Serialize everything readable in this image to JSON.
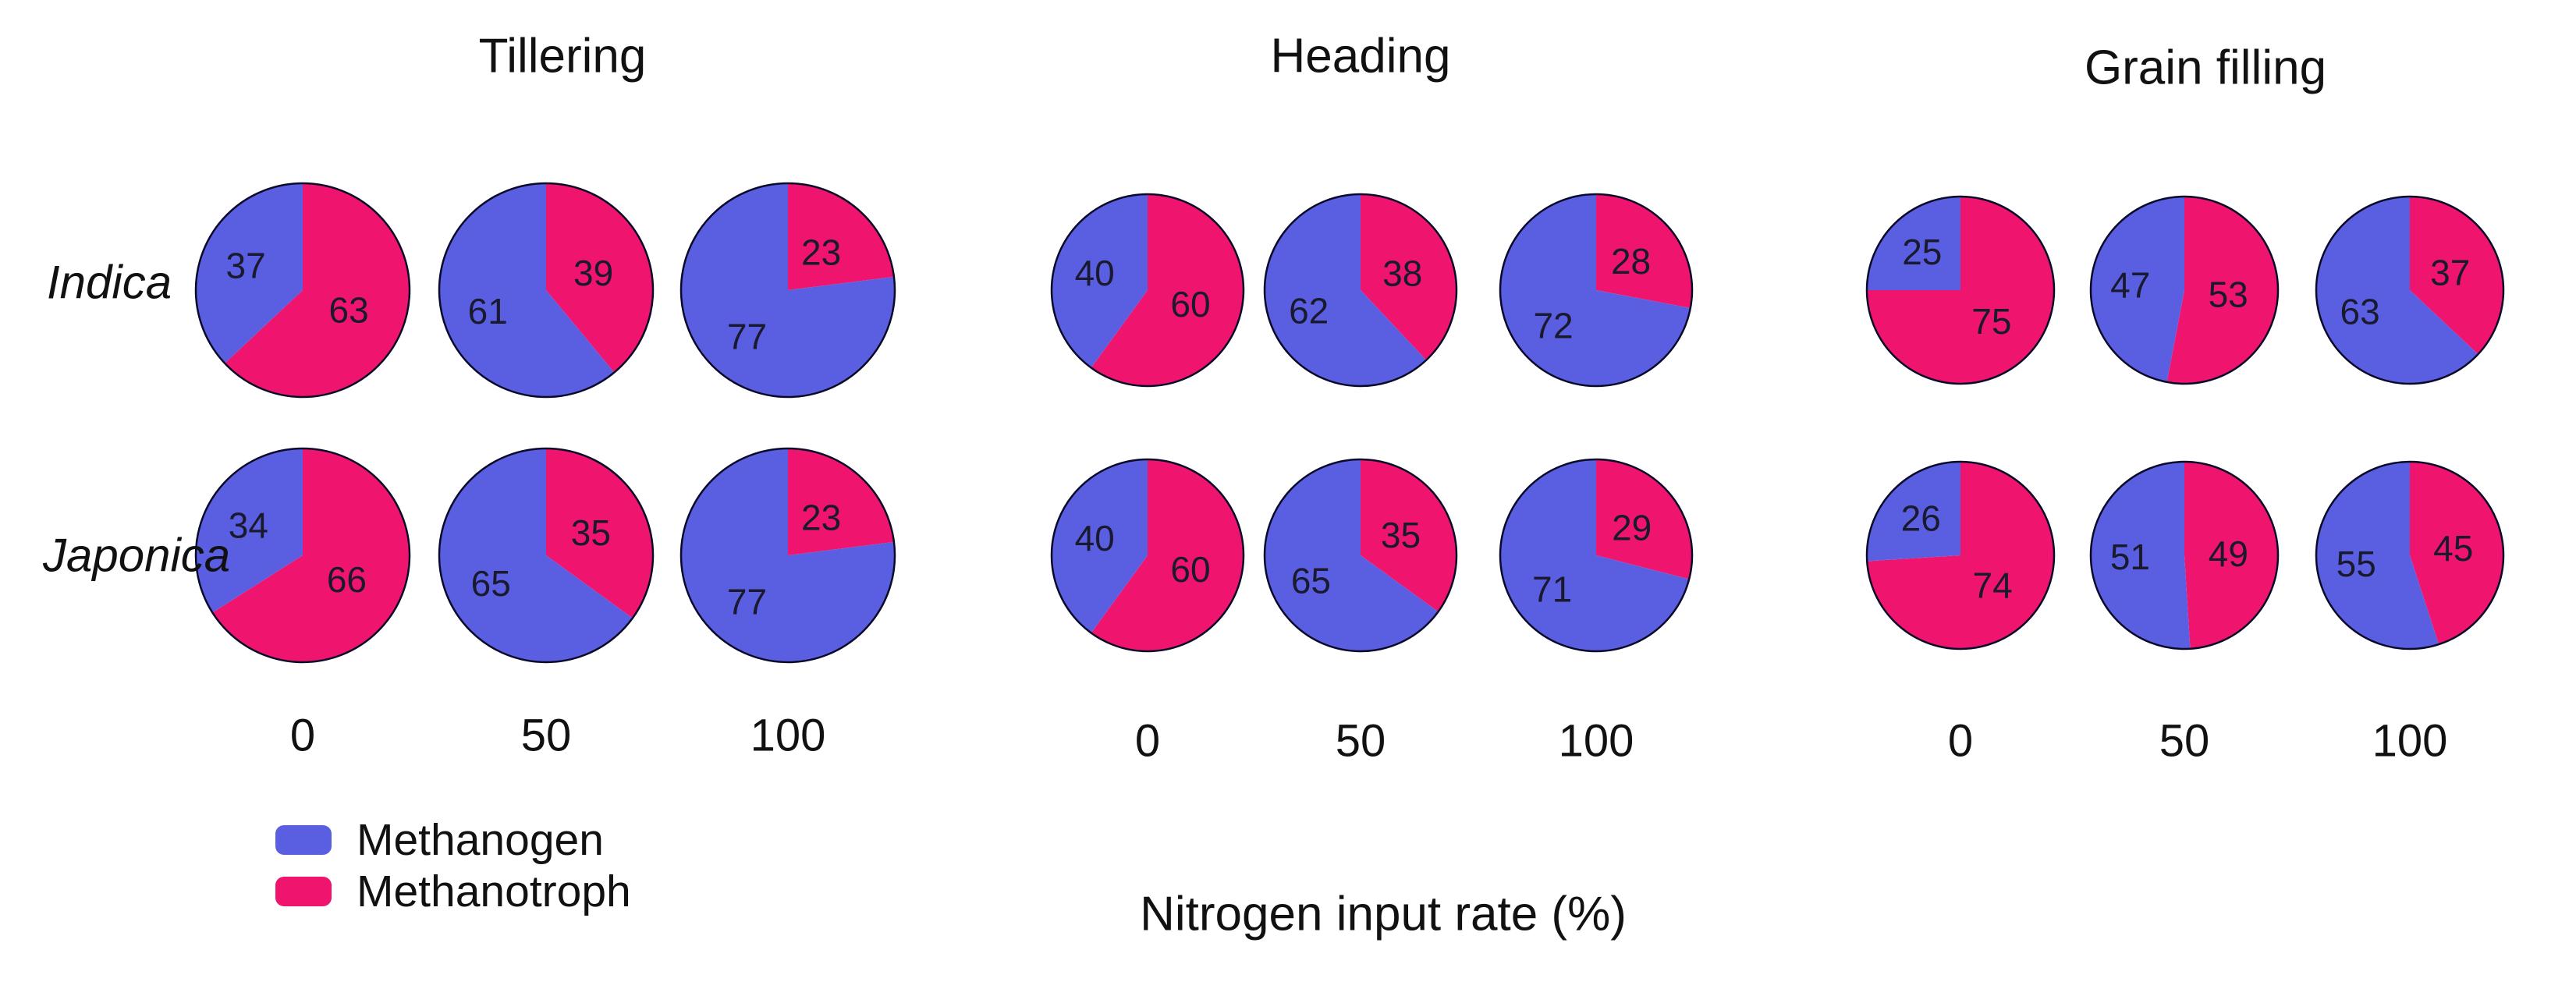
{
  "figure": {
    "row_labels": [
      "Indica",
      "Japonica"
    ],
    "axis_label": "Nitrogen input rate (%)",
    "legend": {
      "items": [
        {
          "label": "Methanogen",
          "color": "#5a5fe1"
        },
        {
          "label": "Methanotroph",
          "color": "#ef156f"
        }
      ]
    }
  },
  "chart_data": {
    "type": "pie",
    "description": "Relative abundance (%) of methanogens vs methanotrophs in two rice subspecies (Indica, Japonica) at three growth stages under three nitrogen input rates",
    "series_names": [
      "Methanogen",
      "Methanotroph"
    ],
    "colors": {
      "methanogen": "#5a5fe1",
      "methanotroph": "#ef156f",
      "outline": "#0a0a28",
      "value_label": "#1a1a2e"
    },
    "xlabel": "Nitrogen input rate (%)",
    "nitrogen_rates": [
      "0",
      "50",
      "100"
    ],
    "row_labels": [
      "Indica",
      "Japonica"
    ],
    "legend_position": "bottom-left",
    "grid": false,
    "sections": [
      {
        "title": "Tillering",
        "rows": [
          {
            "row": "Indica",
            "pies": [
              {
                "nitrogen_rate": "0",
                "methanogen": 37,
                "methanotroph": 63
              },
              {
                "nitrogen_rate": "50",
                "methanogen": 61,
                "methanotroph": 39
              },
              {
                "nitrogen_rate": "100",
                "methanogen": 77,
                "methanotroph": 23
              }
            ]
          },
          {
            "row": "Japonica",
            "pies": [
              {
                "nitrogen_rate": "0",
                "methanogen": 34,
                "methanotroph": 66
              },
              {
                "nitrogen_rate": "50",
                "methanogen": 65,
                "methanotroph": 35
              },
              {
                "nitrogen_rate": "100",
                "methanogen": 77,
                "methanotroph": 23
              }
            ]
          }
        ]
      },
      {
        "title": "Heading",
        "rows": [
          {
            "row": "Indica",
            "pies": [
              {
                "nitrogen_rate": "0",
                "methanogen": 40,
                "methanotroph": 60
              },
              {
                "nitrogen_rate": "50",
                "methanogen": 62,
                "methanotroph": 38
              },
              {
                "nitrogen_rate": "100",
                "methanogen": 72,
                "methanotroph": 28
              }
            ]
          },
          {
            "row": "Japonica",
            "pies": [
              {
                "nitrogen_rate": "0",
                "methanogen": 40,
                "methanotroph": 60
              },
              {
                "nitrogen_rate": "50",
                "methanogen": 65,
                "methanotroph": 35
              },
              {
                "nitrogen_rate": "100",
                "methanogen": 71,
                "methanotroph": 29
              }
            ]
          }
        ]
      },
      {
        "title": "Grain filling",
        "rows": [
          {
            "row": "Indica",
            "pies": [
              {
                "nitrogen_rate": "0",
                "methanogen": 25,
                "methanotroph": 75
              },
              {
                "nitrogen_rate": "50",
                "methanogen": 47,
                "methanotroph": 53
              },
              {
                "nitrogen_rate": "100",
                "methanogen": 63,
                "methanotroph": 37
              }
            ]
          },
          {
            "row": "Japonica",
            "pies": [
              {
                "nitrogen_rate": "0",
                "methanogen": 26,
                "methanotroph": 74
              },
              {
                "nitrogen_rate": "50",
                "methanogen": 51,
                "methanotroph": 49
              },
              {
                "nitrogen_rate": "100",
                "methanogen": 55,
                "methanotroph": 45
              }
            ]
          }
        ]
      }
    ]
  }
}
